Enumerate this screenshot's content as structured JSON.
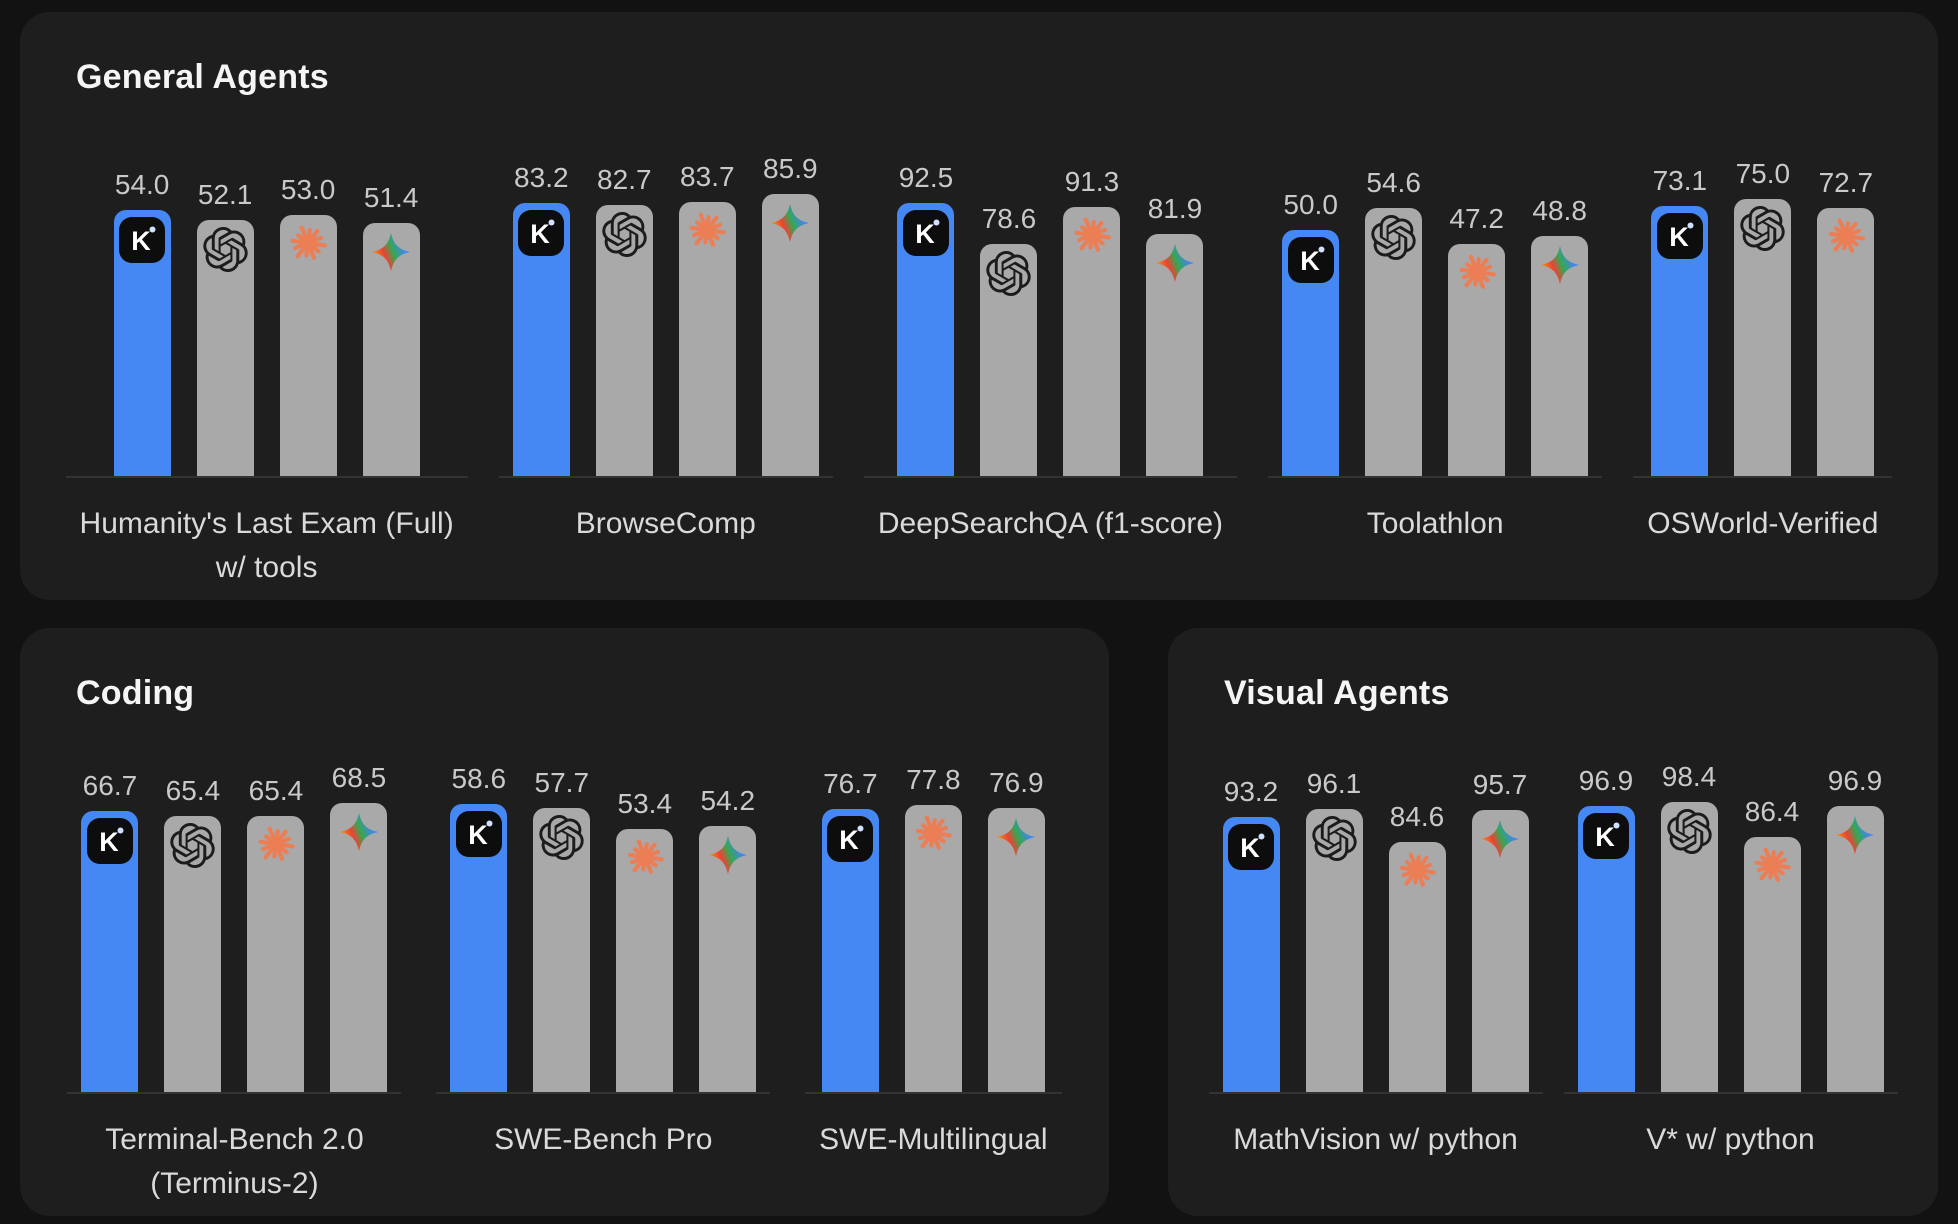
{
  "style": {
    "page_bg": "#121213",
    "panel_bg": "#1e1e1f",
    "bar_highlight_blue": "#4588f4",
    "bar_gray": "#a9a9a9",
    "value_text": "#c9c9c9",
    "label_text": "#dadada",
    "title_text": "#f5f5f5",
    "axis_line": "#333336",
    "kimi_icon_bg": "#0d0d0e",
    "claude_icon_orange": "#ec7e55",
    "openai_icon_black": "#1c1c1c",
    "gemini_gradient": [
      "#f9ab00",
      "#ea4335",
      "#34a853",
      "#4285f4"
    ]
  },
  "chart_data": [
    {
      "panel": "General Agents",
      "type": "bar",
      "legend_position": "none",
      "grid": false,
      "groups": [
        {
          "label": "Humanity's Last Exam (Full)\nw/ tools",
          "bars": [
            {
              "icon": "kimi-icon",
              "value": 54.0,
              "highlight": true
            },
            {
              "icon": "openai-icon",
              "value": 52.1
            },
            {
              "icon": "claude-icon",
              "value": 53.0
            },
            {
              "icon": "gemini-icon",
              "value": 51.4
            }
          ]
        },
        {
          "label": "BrowseComp",
          "bars": [
            {
              "icon": "kimi-icon",
              "value": 83.2,
              "highlight": true
            },
            {
              "icon": "openai-icon",
              "value": 82.7
            },
            {
              "icon": "claude-icon",
              "value": 83.7
            },
            {
              "icon": "gemini-icon",
              "value": 85.9
            }
          ]
        },
        {
          "label": "DeepSearchQA (f1-score)",
          "bars": [
            {
              "icon": "kimi-icon",
              "value": 92.5,
              "highlight": true
            },
            {
              "icon": "openai-icon",
              "value": 78.6
            },
            {
              "icon": "claude-icon",
              "value": 91.3
            },
            {
              "icon": "gemini-icon",
              "value": 81.9
            }
          ]
        },
        {
          "label": "Toolathlon",
          "bars": [
            {
              "icon": "kimi-icon",
              "value": 50.0,
              "highlight": true
            },
            {
              "icon": "openai-icon",
              "value": 54.6
            },
            {
              "icon": "claude-icon",
              "value": 47.2
            },
            {
              "icon": "gemini-icon",
              "value": 48.8
            }
          ]
        },
        {
          "label": "OSWorld-Verified",
          "bars": [
            {
              "icon": "kimi-icon",
              "value": 73.1,
              "highlight": true
            },
            {
              "icon": "openai-icon",
              "value": 75.0
            },
            {
              "icon": "claude-icon",
              "value": 72.7
            }
          ]
        }
      ]
    },
    {
      "panel": "Coding",
      "type": "bar",
      "legend_position": "none",
      "grid": false,
      "groups": [
        {
          "label": "Terminal-Bench 2.0\n(Terminus-2)",
          "bars": [
            {
              "icon": "kimi-icon",
              "value": 66.7,
              "highlight": true
            },
            {
              "icon": "openai-icon",
              "value": 65.4
            },
            {
              "icon": "claude-icon",
              "value": 65.4
            },
            {
              "icon": "gemini-icon",
              "value": 68.5
            }
          ]
        },
        {
          "label": "SWE-Bench Pro",
          "bars": [
            {
              "icon": "kimi-icon",
              "value": 58.6,
              "highlight": true
            },
            {
              "icon": "openai-icon",
              "value": 57.7
            },
            {
              "icon": "claude-icon",
              "value": 53.4
            },
            {
              "icon": "gemini-icon",
              "value": 54.2
            }
          ]
        },
        {
          "label": "SWE-Multilingual",
          "bars": [
            {
              "icon": "kimi-icon",
              "value": 76.7,
              "highlight": true
            },
            {
              "icon": "claude-icon",
              "value": 77.8
            },
            {
              "icon": "gemini-icon",
              "value": 76.9
            }
          ]
        }
      ]
    },
    {
      "panel": "Visual Agents",
      "type": "bar",
      "legend_position": "none",
      "grid": false,
      "groups": [
        {
          "label": "MathVision w/ python",
          "bars": [
            {
              "icon": "kimi-icon",
              "value": 93.2,
              "highlight": true
            },
            {
              "icon": "openai-icon",
              "value": 96.1
            },
            {
              "icon": "claude-icon",
              "value": 84.6
            },
            {
              "icon": "gemini-icon",
              "value": 95.7
            }
          ]
        },
        {
          "label": "V* w/ python",
          "bars": [
            {
              "icon": "kimi-icon",
              "value": 96.9,
              "highlight": true
            },
            {
              "icon": "openai-icon",
              "value": 98.4
            },
            {
              "icon": "claude-icon",
              "value": 86.4
            },
            {
              "icon": "gemini-icon",
              "value": 96.9
            }
          ]
        }
      ]
    }
  ]
}
